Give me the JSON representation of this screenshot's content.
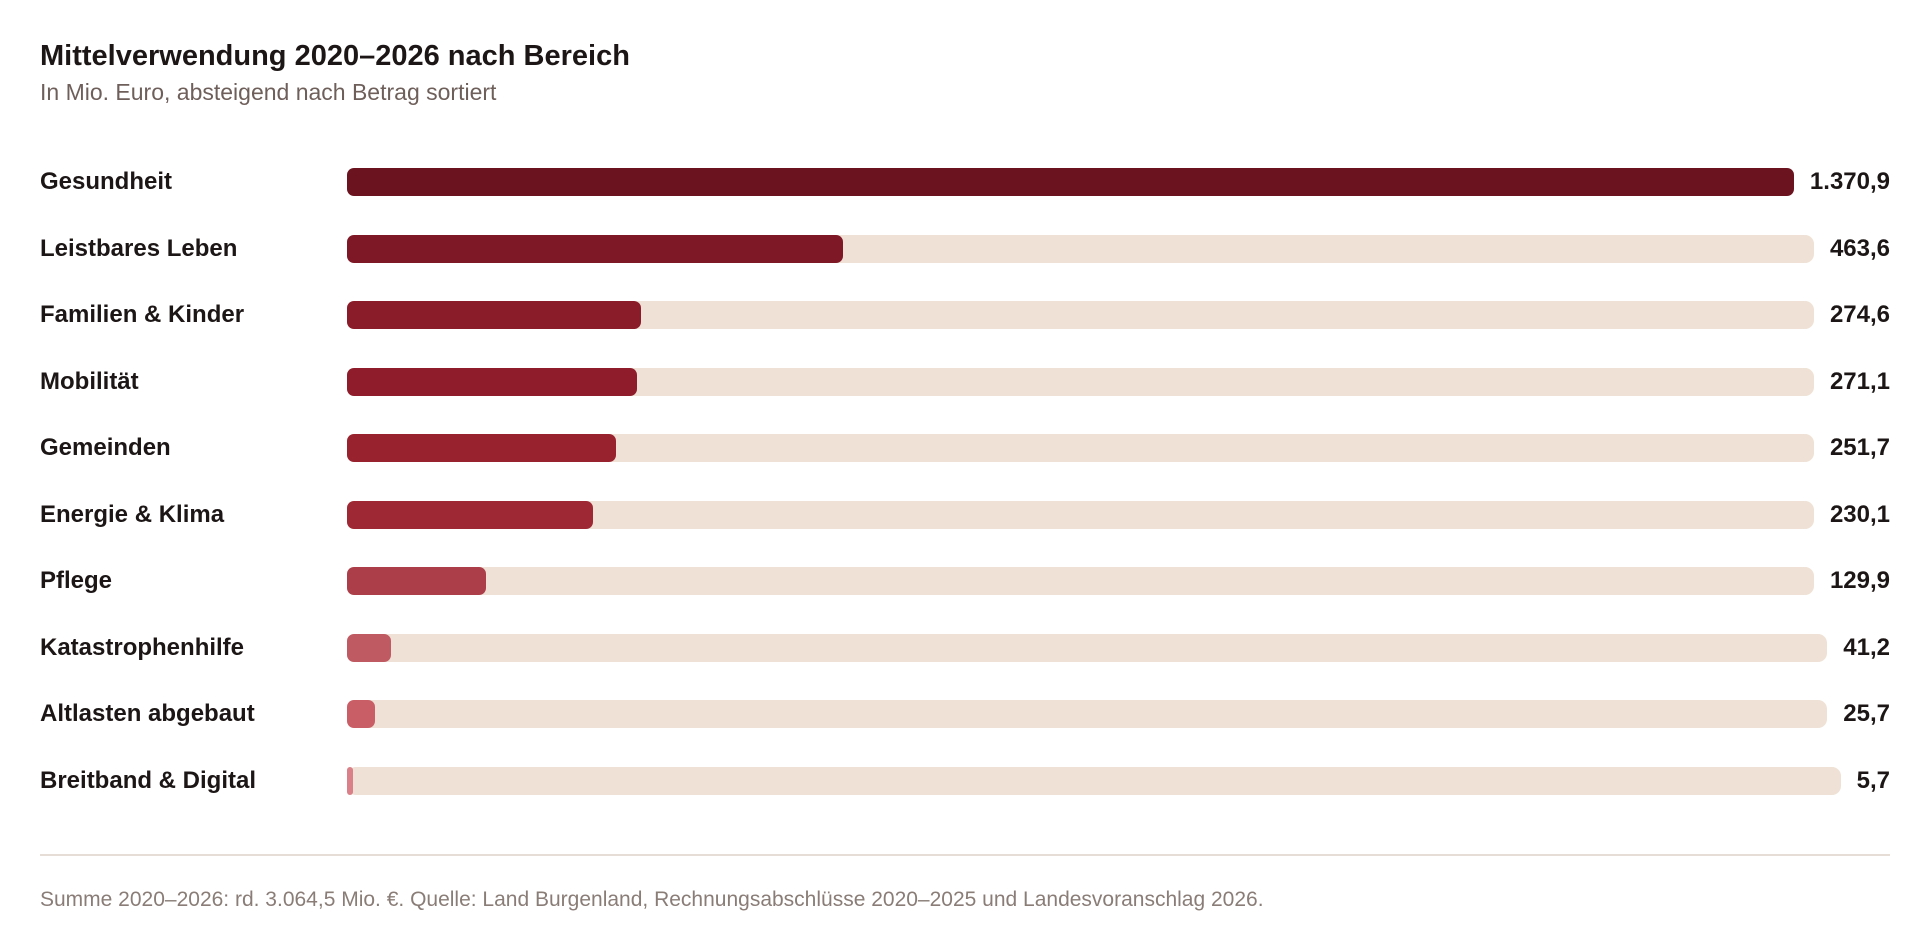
{
  "chart_data": {
    "type": "bar",
    "orientation": "horizontal",
    "title": "Mittelverwendung 2020–2026 nach Bereich",
    "subtitle": "In Mio. Euro, absteigend nach Betrag sortiert",
    "categories": [
      "Gesundheit",
      "Leistbares Leben",
      "Familien & Kinder",
      "Mobilität",
      "Gemeinden",
      "Energie & Klima",
      "Pflege",
      "Katastrophenhilfe",
      "Altlasten abgebaut",
      "Breitband & Digital"
    ],
    "values": [
      1370.9,
      463.6,
      274.6,
      271.1,
      251.7,
      230.1,
      129.9,
      41.2,
      25.7,
      5.7
    ],
    "value_labels": [
      "1.370,9",
      "463,6",
      "274,6",
      "271,1",
      "251,7",
      "230,1",
      "129,9",
      "41,2",
      "25,7",
      "5,7"
    ],
    "colors": [
      "#6b1420",
      "#7e1826",
      "#8a1c2a",
      "#8e1c2b",
      "#98232f",
      "#9e2833",
      "#ac3e49",
      "#c05a62",
      "#c95e66",
      "#d98088"
    ],
    "track_color": "#efe1d5",
    "xlim": [
      0,
      1370.9
    ],
    "grid": false,
    "legend": "none"
  },
  "footnote": "Summe 2020–2026: rd. 3.064,5 Mio. €. Quelle: Land Burgenland, Rechnungsabschlüsse 2020–2025 und Landesvoranschlag 2026."
}
